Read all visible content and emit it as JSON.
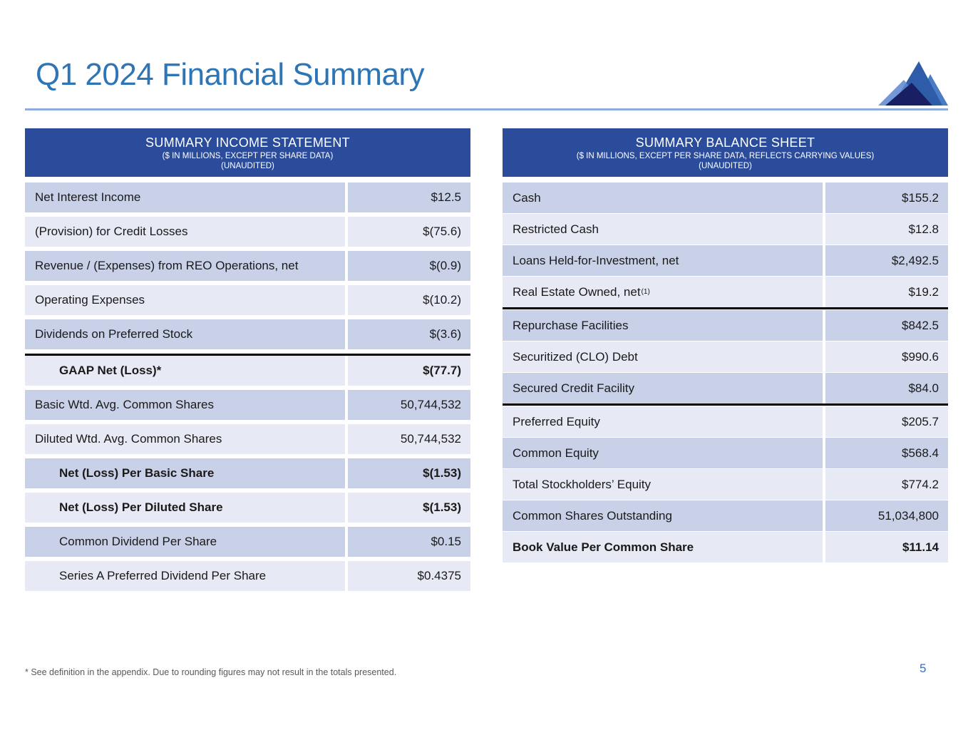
{
  "slide": {
    "title": "Q1 2024 Financial Summary",
    "page_number": "5",
    "footnote": "* See definition in the appendix. Due to rounding figures may not result in the totals presented.",
    "colors": {
      "header_bg": "#2b4b9b",
      "row_dark": "#c9d1e8",
      "row_light": "#e7eaf4",
      "title_blue": "#2e75b6",
      "rule_blue": "#8faadc",
      "logo_dark_navy": "#191f63",
      "logo_medium_blue": "#2e5ca8",
      "logo_light_blue": "#4a7bc4"
    }
  },
  "income_statement": {
    "title": "SUMMARY INCOME STATEMENT",
    "subtitle": "($ IN MILLIONS, EXCEPT PER SHARE DATA)",
    "unaudited": "(UNAUDITED)",
    "rows": [
      {
        "label": "Net Interest Income",
        "value": "$12.5"
      },
      {
        "label": "(Provision) for Credit Losses",
        "value": "$(75.6)"
      },
      {
        "label": "Revenue / (Expenses) from REO Operations, net",
        "value": "$(0.9)"
      },
      {
        "label": "Operating Expenses",
        "value": "$(10.2)"
      },
      {
        "label": "Dividends on Preferred Stock",
        "value": "$(3.6)"
      },
      {
        "label": "GAAP Net (Loss)*",
        "value": "$(77.7)",
        "bold": true,
        "indent": true,
        "border_top": true
      },
      {
        "label": "Basic Wtd. Avg. Common Shares",
        "value": "50,744,532"
      },
      {
        "label": "Diluted Wtd. Avg. Common Shares",
        "value": "50,744,532"
      },
      {
        "label": "Net (Loss) Per Basic Share",
        "value": "$(1.53)",
        "bold": true,
        "indent": true
      },
      {
        "label": "Net (Loss) Per Diluted Share",
        "value": "$(1.53)",
        "bold": true,
        "indent": true
      },
      {
        "label": "Common Dividend Per Share",
        "value": "$0.15",
        "indent": true
      },
      {
        "label": "Series A Preferred Dividend Per Share",
        "value": "$0.4375",
        "indent": true
      }
    ]
  },
  "balance_sheet": {
    "title": "SUMMARY BALANCE SHEET",
    "subtitle": "($ IN MILLIONS, EXCEPT PER SHARE DATA, REFLECTS CARRYING VALUES)",
    "unaudited": "(UNAUDITED)",
    "rows": [
      {
        "label": "Cash",
        "value": "$155.2"
      },
      {
        "label": "Restricted Cash",
        "value": "$12.8"
      },
      {
        "label": "Loans Held-for-Investment, net",
        "value": "$2,492.5"
      },
      {
        "label": "Real Estate Owned, net",
        "sup": "(1)",
        "value": "$19.2",
        "border_bottom": true
      },
      {
        "label": "Repurchase Facilities",
        "value": "$842.5"
      },
      {
        "label": "Securitized (CLO) Debt",
        "value": "$990.6"
      },
      {
        "label": "Secured Credit Facility",
        "value": "$84.0",
        "border_bottom": true
      },
      {
        "label": "Preferred Equity",
        "value": "$205.7"
      },
      {
        "label": "Common Equity",
        "value": "$568.4"
      },
      {
        "label": "Total Stockholders’ Equity",
        "value": "$774.2"
      },
      {
        "label": "Common Shares Outstanding",
        "value": "51,034,800"
      },
      {
        "label": "Book Value Per Common Share",
        "value": "$11.14",
        "bold": true
      }
    ]
  }
}
